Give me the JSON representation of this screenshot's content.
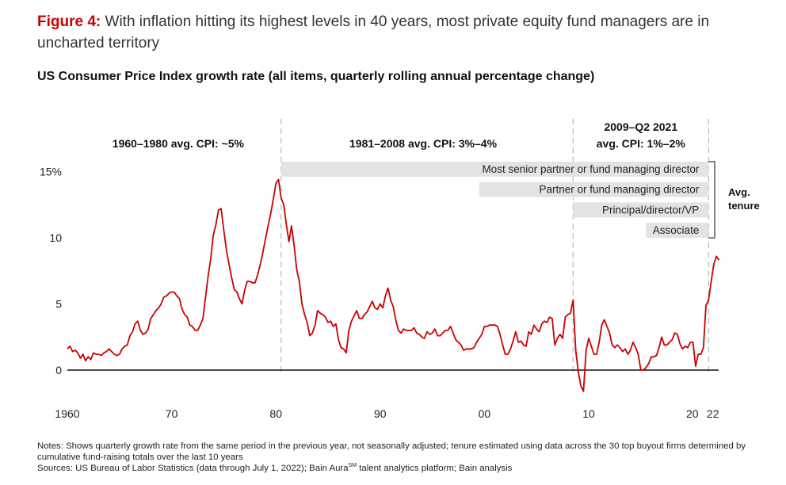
{
  "header": {
    "figure_label": "Figure 4:",
    "figure_title": "With inflation hitting its highest levels in 40 years, most private equity fund managers are in uncharted territory"
  },
  "chart_data": {
    "type": "line",
    "title": "US Consumer Price Index growth rate (all items, quarterly rolling annual percentage change)",
    "xlabel": "",
    "ylabel": "",
    "xlim": [
      1960,
      2022.5
    ],
    "ylim": [
      -2.5,
      15
    ],
    "grid": false,
    "y_ticks": [
      {
        "value": 0,
        "label": "0"
      },
      {
        "value": 5,
        "label": "5"
      },
      {
        "value": 10,
        "label": "10"
      },
      {
        "value": 15,
        "label": "15%"
      }
    ],
    "x_ticks": [
      {
        "value": 1960,
        "label": "1960"
      },
      {
        "value": 1970,
        "label": "70"
      },
      {
        "value": 1980,
        "label": "80"
      },
      {
        "value": 1990,
        "label": "90"
      },
      {
        "value": 2000,
        "label": "00"
      },
      {
        "value": 2010,
        "label": "10"
      },
      {
        "value": 2020,
        "label": "20"
      },
      {
        "value": 2022,
        "label": "22"
      }
    ],
    "line_color": "#cc0000",
    "series": [
      {
        "name": "",
        "points": [
          [
            1960.0,
            1.6
          ],
          [
            1960.25,
            1.8
          ],
          [
            1960.5,
            1.4
          ],
          [
            1960.75,
            1.5
          ],
          [
            1961.0,
            1.3
          ],
          [
            1961.25,
            0.9
          ],
          [
            1961.5,
            1.2
          ],
          [
            1961.75,
            0.7
          ],
          [
            1962.0,
            1.0
          ],
          [
            1962.25,
            0.8
          ],
          [
            1962.5,
            1.3
          ],
          [
            1962.75,
            1.2
          ],
          [
            1963.0,
            1.2
          ],
          [
            1963.25,
            1.1
          ],
          [
            1963.5,
            1.3
          ],
          [
            1963.75,
            1.4
          ],
          [
            1964.0,
            1.6
          ],
          [
            1964.25,
            1.4
          ],
          [
            1964.5,
            1.2
          ],
          [
            1964.75,
            1.1
          ],
          [
            1965.0,
            1.2
          ],
          [
            1965.25,
            1.6
          ],
          [
            1965.5,
            1.8
          ],
          [
            1965.75,
            1.9
          ],
          [
            1966.0,
            2.6
          ],
          [
            1966.25,
            2.9
          ],
          [
            1966.5,
            3.5
          ],
          [
            1966.75,
            3.7
          ],
          [
            1967.0,
            3.0
          ],
          [
            1967.25,
            2.7
          ],
          [
            1967.5,
            2.8
          ],
          [
            1967.75,
            3.1
          ],
          [
            1968.0,
            3.9
          ],
          [
            1968.25,
            4.2
          ],
          [
            1968.5,
            4.5
          ],
          [
            1968.75,
            4.7
          ],
          [
            1969.0,
            5.0
          ],
          [
            1969.25,
            5.5
          ],
          [
            1969.5,
            5.6
          ],
          [
            1969.75,
            5.8
          ],
          [
            1970.0,
            5.9
          ],
          [
            1970.25,
            5.9
          ],
          [
            1970.5,
            5.6
          ],
          [
            1970.75,
            5.4
          ],
          [
            1971.0,
            4.6
          ],
          [
            1971.25,
            4.2
          ],
          [
            1971.5,
            4.0
          ],
          [
            1971.75,
            3.4
          ],
          [
            1972.0,
            3.3
          ],
          [
            1972.25,
            3.0
          ],
          [
            1972.5,
            3.0
          ],
          [
            1972.75,
            3.4
          ],
          [
            1973.0,
            3.9
          ],
          [
            1973.25,
            5.5
          ],
          [
            1973.5,
            7.1
          ],
          [
            1973.75,
            8.4
          ],
          [
            1974.0,
            10.2
          ],
          [
            1974.25,
            11.0
          ],
          [
            1974.5,
            12.1
          ],
          [
            1974.75,
            12.2
          ],
          [
            1975.0,
            10.6
          ],
          [
            1975.25,
            9.1
          ],
          [
            1975.5,
            8.0
          ],
          [
            1975.75,
            7.0
          ],
          [
            1976.0,
            6.1
          ],
          [
            1976.25,
            5.9
          ],
          [
            1976.5,
            5.4
          ],
          [
            1976.75,
            5.0
          ],
          [
            1977.0,
            6.0
          ],
          [
            1977.25,
            6.7
          ],
          [
            1977.5,
            6.7
          ],
          [
            1977.75,
            6.6
          ],
          [
            1978.0,
            6.6
          ],
          [
            1978.25,
            7.2
          ],
          [
            1978.5,
            8.0
          ],
          [
            1978.75,
            8.9
          ],
          [
            1979.0,
            9.9
          ],
          [
            1979.25,
            10.9
          ],
          [
            1979.5,
            11.8
          ],
          [
            1979.75,
            12.9
          ],
          [
            1980.0,
            14.1
          ],
          [
            1980.25,
            14.4
          ],
          [
            1980.5,
            13.0
          ],
          [
            1980.75,
            12.5
          ],
          [
            1981.0,
            11.0
          ],
          [
            1981.25,
            9.7
          ],
          [
            1981.5,
            10.9
          ],
          [
            1981.75,
            9.4
          ],
          [
            1982.0,
            7.6
          ],
          [
            1982.25,
            6.7
          ],
          [
            1982.5,
            5.0
          ],
          [
            1982.75,
            4.2
          ],
          [
            1983.0,
            3.6
          ],
          [
            1983.25,
            2.6
          ],
          [
            1983.5,
            2.8
          ],
          [
            1983.75,
            3.4
          ],
          [
            1984.0,
            4.5
          ],
          [
            1984.25,
            4.3
          ],
          [
            1984.5,
            4.2
          ],
          [
            1984.75,
            4.0
          ],
          [
            1985.0,
            3.6
          ],
          [
            1985.25,
            3.7
          ],
          [
            1985.5,
            3.3
          ],
          [
            1985.75,
            3.5
          ],
          [
            1986.0,
            2.3
          ],
          [
            1986.25,
            1.7
          ],
          [
            1986.5,
            1.6
          ],
          [
            1986.75,
            1.3
          ],
          [
            1987.0,
            3.0
          ],
          [
            1987.25,
            3.7
          ],
          [
            1987.5,
            4.1
          ],
          [
            1987.75,
            4.5
          ],
          [
            1988.0,
            3.9
          ],
          [
            1988.25,
            3.9
          ],
          [
            1988.5,
            4.2
          ],
          [
            1988.75,
            4.4
          ],
          [
            1989.0,
            4.8
          ],
          [
            1989.25,
            5.2
          ],
          [
            1989.5,
            4.7
          ],
          [
            1989.75,
            4.6
          ],
          [
            1990.0,
            5.0
          ],
          [
            1990.25,
            4.7
          ],
          [
            1990.5,
            5.6
          ],
          [
            1990.75,
            6.2
          ],
          [
            1991.0,
            5.3
          ],
          [
            1991.25,
            4.8
          ],
          [
            1991.5,
            3.8
          ],
          [
            1991.75,
            3.0
          ],
          [
            1992.0,
            2.8
          ],
          [
            1992.25,
            3.1
          ],
          [
            1992.5,
            3.0
          ],
          [
            1992.75,
            3.0
          ],
          [
            1993.0,
            3.0
          ],
          [
            1993.25,
            3.2
          ],
          [
            1993.5,
            2.8
          ],
          [
            1993.75,
            2.7
          ],
          [
            1994.0,
            2.5
          ],
          [
            1994.25,
            2.4
          ],
          [
            1994.5,
            2.9
          ],
          [
            1994.75,
            2.7
          ],
          [
            1995.0,
            2.8
          ],
          [
            1995.25,
            3.1
          ],
          [
            1995.5,
            2.6
          ],
          [
            1995.75,
            2.6
          ],
          [
            1996.0,
            2.8
          ],
          [
            1996.25,
            3.0
          ],
          [
            1996.5,
            3.0
          ],
          [
            1996.75,
            3.3
          ],
          [
            1997.0,
            2.8
          ],
          [
            1997.25,
            2.3
          ],
          [
            1997.5,
            2.1
          ],
          [
            1997.75,
            1.9
          ],
          [
            1998.0,
            1.5
          ],
          [
            1998.25,
            1.6
          ],
          [
            1998.5,
            1.6
          ],
          [
            1998.75,
            1.6
          ],
          [
            1999.0,
            1.7
          ],
          [
            1999.25,
            2.1
          ],
          [
            1999.5,
            2.4
          ],
          [
            1999.75,
            2.7
          ],
          [
            2000.0,
            3.3
          ],
          [
            2000.25,
            3.3
          ],
          [
            2000.5,
            3.4
          ],
          [
            2000.75,
            3.4
          ],
          [
            2001.0,
            3.4
          ],
          [
            2001.25,
            3.3
          ],
          [
            2001.5,
            2.7
          ],
          [
            2001.75,
            1.9
          ],
          [
            2002.0,
            1.2
          ],
          [
            2002.25,
            1.2
          ],
          [
            2002.5,
            1.6
          ],
          [
            2002.75,
            2.2
          ],
          [
            2003.0,
            2.9
          ],
          [
            2003.25,
            2.1
          ],
          [
            2003.5,
            2.2
          ],
          [
            2003.75,
            1.9
          ],
          [
            2004.0,
            1.8
          ],
          [
            2004.25,
            2.9
          ],
          [
            2004.5,
            2.7
          ],
          [
            2004.75,
            3.4
          ],
          [
            2005.0,
            3.1
          ],
          [
            2005.25,
            2.9
          ],
          [
            2005.5,
            3.5
          ],
          [
            2005.75,
            3.7
          ],
          [
            2006.0,
            3.6
          ],
          [
            2006.25,
            4.0
          ],
          [
            2006.5,
            3.9
          ],
          [
            2006.75,
            1.9
          ],
          [
            2007.0,
            2.4
          ],
          [
            2007.25,
            2.7
          ],
          [
            2007.5,
            2.4
          ],
          [
            2007.75,
            4.0
          ],
          [
            2008.0,
            4.2
          ],
          [
            2008.25,
            4.3
          ],
          [
            2008.5,
            5.3
          ],
          [
            2008.75,
            1.5
          ],
          [
            2009.0,
            -0.1
          ],
          [
            2009.25,
            -1.2
          ],
          [
            2009.5,
            -1.6
          ],
          [
            2009.75,
            1.5
          ],
          [
            2010.0,
            2.4
          ],
          [
            2010.25,
            1.8
          ],
          [
            2010.5,
            1.2
          ],
          [
            2010.75,
            1.2
          ],
          [
            2011.0,
            2.1
          ],
          [
            2011.25,
            3.4
          ],
          [
            2011.5,
            3.8
          ],
          [
            2011.75,
            3.3
          ],
          [
            2012.0,
            2.8
          ],
          [
            2012.25,
            1.9
          ],
          [
            2012.5,
            1.7
          ],
          [
            2012.75,
            1.9
          ],
          [
            2013.0,
            1.7
          ],
          [
            2013.25,
            1.4
          ],
          [
            2013.5,
            1.6
          ],
          [
            2013.75,
            1.2
          ],
          [
            2014.0,
            1.5
          ],
          [
            2014.25,
            2.1
          ],
          [
            2014.5,
            1.7
          ],
          [
            2014.75,
            1.2
          ],
          [
            2015.0,
            0.0
          ],
          [
            2015.25,
            0.0
          ],
          [
            2015.5,
            0.2
          ],
          [
            2015.75,
            0.5
          ],
          [
            2016.0,
            1.0
          ],
          [
            2016.25,
            1.0
          ],
          [
            2016.5,
            1.1
          ],
          [
            2016.75,
            1.7
          ],
          [
            2017.0,
            2.5
          ],
          [
            2017.25,
            1.9
          ],
          [
            2017.5,
            1.9
          ],
          [
            2017.75,
            2.1
          ],
          [
            2018.0,
            2.3
          ],
          [
            2018.25,
            2.8
          ],
          [
            2018.5,
            2.7
          ],
          [
            2018.75,
            2.0
          ],
          [
            2019.0,
            1.6
          ],
          [
            2019.25,
            1.8
          ],
          [
            2019.5,
            1.7
          ],
          [
            2019.75,
            2.1
          ],
          [
            2020.0,
            2.1
          ],
          [
            2020.25,
            0.3
          ],
          [
            2020.5,
            1.2
          ],
          [
            2020.75,
            1.2
          ],
          [
            2021.0,
            1.7
          ],
          [
            2021.25,
            4.9
          ],
          [
            2021.5,
            5.3
          ],
          [
            2021.75,
            6.7
          ],
          [
            2022.0,
            8.0
          ],
          [
            2022.25,
            8.6
          ],
          [
            2022.5,
            8.3
          ]
        ]
      }
    ],
    "eras": [
      {
        "label": "1960–1980 avg. CPI: ~5%",
        "from": 1960,
        "to": 1980.5
      },
      {
        "label": "1981–2008 avg. CPI: 3%–4%",
        "from": 1980.5,
        "to": 2008.5
      },
      {
        "label_line1": "2009–Q2 2021",
        "label_line2": "avg. CPI: 1%–2%",
        "from": 2008.5,
        "to": 2021.5
      }
    ],
    "era_dividers": [
      1980.5,
      2008.5,
      2021.5
    ],
    "tenure_bars": [
      {
        "label": "Most senior partner or fund managing director",
        "from": 1980.5
      },
      {
        "label": "Partner or fund managing director",
        "from": 1999.5
      },
      {
        "label": "Principal/director/VP",
        "from": 2008.5
      },
      {
        "label": "Associate",
        "from": 2015.5
      }
    ],
    "tenure_bars_end": 2021.5,
    "tenure_bracket_label": [
      "Avg.",
      "tenure"
    ]
  },
  "notes": {
    "line1": "Notes: Shows quarterly growth rate from the same period in the previous year, not seasonally adjusted; tenure estimated using data across the 30 top buyout firms determined by cumulative fund-raising totals over the last 10 years",
    "sources_pre": "Sources: US Bureau of Labor Statistics (data through July 1, 2022); Bain Aura",
    "sources_sup": "SM",
    "sources_post": " talent analytics platform; Bain analysis"
  }
}
